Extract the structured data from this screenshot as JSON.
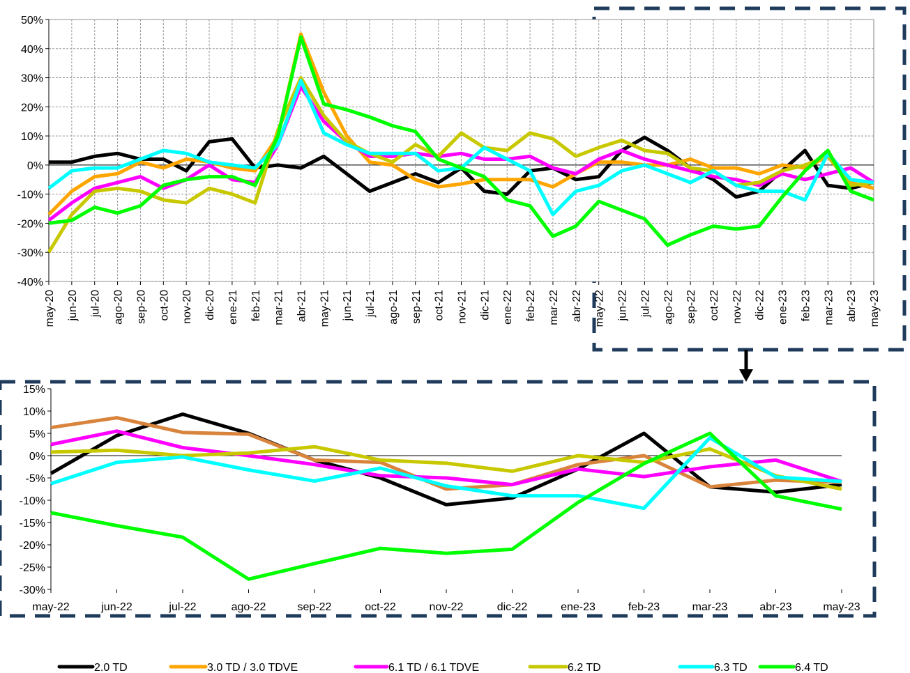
{
  "chart_data": [
    {
      "type": "line",
      "categories": [
        "may-20",
        "jun-20",
        "jul-20",
        "ago-20",
        "sep-20",
        "oct-20",
        "nov-20",
        "dic-20",
        "ene-21",
        "feb-21",
        "mar-21",
        "abr-21",
        "may-21",
        "jun-21",
        "jul-21",
        "ago-21",
        "sep-21",
        "oct-21",
        "nov-21",
        "dic-21",
        "ene-22",
        "feb-22",
        "mar-22",
        "abr-22",
        "may-22",
        "jun-22",
        "jul-22",
        "ago-22",
        "sep-22",
        "oct-22",
        "nov-22",
        "dic-22",
        "ene-23",
        "feb-23",
        "mar-23",
        "abr-23",
        "may-23"
      ],
      "ylim": [
        -40,
        50
      ],
      "yticks": [
        {
          "value": -40,
          "label": "-40%"
        },
        {
          "value": -30,
          "label": "-30%"
        },
        {
          "value": -20,
          "label": "-20%"
        },
        {
          "value": -10,
          "label": "-10%"
        },
        {
          "value": 0,
          "label": "0%"
        },
        {
          "value": 10,
          "label": "10%"
        },
        {
          "value": 20,
          "label": "20%"
        },
        {
          "value": 30,
          "label": "30%"
        },
        {
          "value": 40,
          "label": "40%"
        },
        {
          "value": 50,
          "label": "50%"
        }
      ],
      "grid": true,
      "series": [
        {
          "name": "2.0 TD",
          "color": "#000000",
          "values": [
            1,
            1,
            3,
            4,
            2,
            2,
            -2,
            8,
            9,
            -1,
            0,
            -1,
            3,
            -3,
            -9,
            -6,
            -3,
            -6,
            -1,
            -9,
            -10,
            -2,
            -1,
            -5,
            -4,
            5,
            9.5,
            5,
            -1,
            -5,
            -11,
            -9,
            -2,
            5,
            -7,
            -8,
            -6
          ]
        },
        {
          "name": "3.0 TD / 3.0 TDVE",
          "color": "#ffa500",
          "values": [
            -17,
            -9,
            -4,
            -3,
            1,
            -1,
            2,
            1,
            -1,
            -2,
            10,
            45,
            25,
            10,
            1,
            0,
            -5,
            -7.5,
            -6.5,
            -5,
            -5,
            -5,
            -7.5,
            -3,
            1,
            1,
            0,
            0,
            2,
            -1,
            -1,
            -3,
            0,
            -1,
            3,
            -6,
            -8
          ]
        },
        {
          "name": "6.1 TD / 6.1 TDVE",
          "color": "#ff00ff",
          "values": [
            -19,
            -13,
            -8,
            -6,
            -4,
            -8,
            -5,
            0,
            -5,
            -6,
            7,
            27,
            15,
            8,
            3,
            3,
            4,
            3,
            4,
            2,
            2,
            3,
            -1,
            -3,
            2,
            5,
            2,
            0,
            -2,
            -4,
            -5,
            -7,
            -3,
            -5,
            -3,
            -1,
            -6
          ]
        },
        {
          "name": "6.2 TD",
          "color": "#c8c800",
          "values": [
            -30,
            -17,
            -9,
            -8,
            -9,
            -12,
            -13,
            -8,
            -10,
            -13,
            12,
            30,
            17,
            8,
            4,
            1,
            7,
            3,
            11,
            6,
            5,
            11,
            9,
            3,
            6,
            8.5,
            5,
            4,
            -1,
            -2,
            -7,
            -6,
            -2,
            0,
            3,
            -7,
            -6
          ]
        },
        {
          "name": "6.3 TD",
          "color": "#00ffff",
          "values": [
            -8,
            -2,
            -1,
            -1,
            2,
            5,
            4,
            1,
            0,
            -1,
            7,
            29,
            11,
            7,
            4,
            4,
            4,
            -2,
            -1,
            6,
            2,
            -2,
            -17,
            -9,
            -7,
            -2,
            0,
            -3,
            -6,
            -2,
            -7,
            -9,
            -9,
            -12,
            4,
            -5,
            -6
          ]
        },
        {
          "name": "6.4 TD",
          "color": "#00ff00",
          "values": [
            -20,
            -19,
            -14.5,
            -16.5,
            -14,
            -7,
            -5,
            -4,
            -4,
            -7,
            10,
            44,
            21,
            19,
            16.5,
            13.5,
            11.5,
            2,
            -1,
            -4,
            -12,
            -14,
            -24.5,
            -21,
            -12.5,
            -15.5,
            -18.5,
            -27.5,
            -24,
            -21,
            -22,
            -21,
            -11,
            -2,
            5,
            -9,
            -12
          ]
        }
      ]
    },
    {
      "type": "line",
      "categories": [
        "may-22",
        "jun-22",
        "jul-22",
        "ago-22",
        "sep-22",
        "oct-22",
        "nov-22",
        "dic-22",
        "ene-23",
        "feb-23",
        "mar-23",
        "abr-23",
        "may-23"
      ],
      "ylim": [
        -30,
        15
      ],
      "yticks": [
        {
          "value": -30,
          "label": "-30%"
        },
        {
          "value": -25,
          "label": "-25%"
        },
        {
          "value": -20,
          "label": "-20%"
        },
        {
          "value": -15,
          "label": "-15%"
        },
        {
          "value": -10,
          "label": "-10%"
        },
        {
          "value": -5,
          "label": "-5%"
        },
        {
          "value": 0,
          "label": "0%"
        },
        {
          "value": 5,
          "label": "5%"
        },
        {
          "value": 10,
          "label": "10%"
        },
        {
          "value": 15,
          "label": "15%"
        }
      ],
      "grid": false,
      "series": [
        {
          "color": "#000000",
          "values": [
            -4,
            4.5,
            9.3,
            5,
            -1,
            -5,
            -11,
            -9.5,
            -3,
            5,
            -7,
            -8.2,
            -6.5
          ]
        },
        {
          "color": "#d9843c",
          "values": [
            6.3,
            8.5,
            5.2,
            4.8,
            -1,
            -1.5,
            -7.5,
            -6.5,
            -2,
            0,
            -7,
            -5.5,
            -6
          ]
        },
        {
          "color": "#ff00ff",
          "values": [
            2.5,
            5.5,
            1.8,
            0,
            -2,
            -4.5,
            -5,
            -6.5,
            -3,
            -4.7,
            -2.5,
            -1,
            -5.8
          ]
        },
        {
          "color": "#c8c800",
          "values": [
            0.8,
            1.2,
            0,
            0.6,
            2,
            -1,
            -1.7,
            -3.5,
            0,
            -1.5,
            1.5,
            -4.5,
            -7.5
          ]
        },
        {
          "color": "#00ffff",
          "values": [
            -6.3,
            -1.5,
            -0.3,
            -3.2,
            -5.7,
            -2.8,
            -6.8,
            -9,
            -9,
            -11.8,
            4,
            -4.8,
            -5.8
          ]
        },
        {
          "color": "#00ff00",
          "values": [
            -12.8,
            -15.7,
            -18.3,
            -27.7,
            -24.2,
            -20.8,
            -21.9,
            -21,
            -10.5,
            -1.8,
            5,
            -9,
            -12
          ]
        }
      ]
    }
  ]
}
